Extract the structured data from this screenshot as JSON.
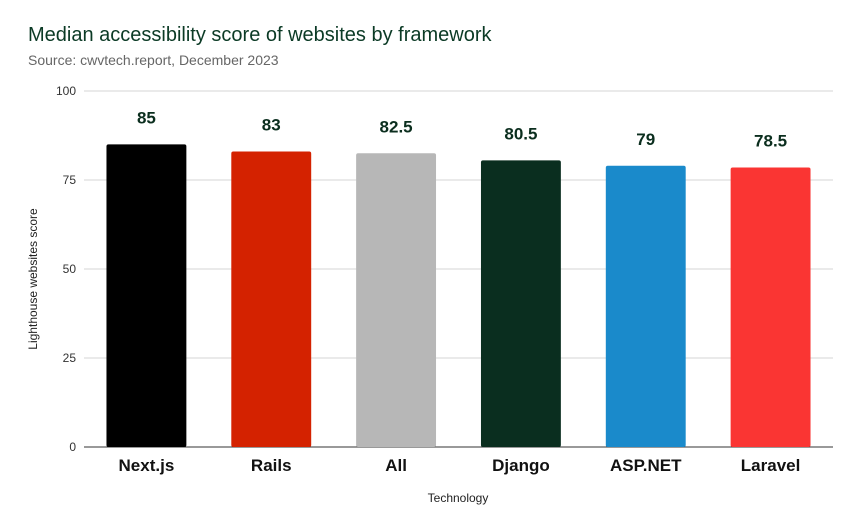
{
  "chart_data": {
    "type": "bar",
    "title": "Median accessibility score of websites by framework",
    "subtitle": "Source: cwvtech.report, December 2023",
    "xlabel": "Technology",
    "ylabel": "Lighthouse websites score",
    "categories": [
      "Next.js",
      "Rails",
      "All",
      "Django",
      "ASP.NET",
      "Laravel"
    ],
    "values": [
      85,
      83,
      82.5,
      80.5,
      79,
      78.5
    ],
    "data_labels": [
      "85",
      "83",
      "82.5",
      "80.5",
      "79",
      "78.5"
    ],
    "colors": [
      "#000000",
      "#d42200",
      "#b7b7b7",
      "#0a2e1f",
      "#1a8acb",
      "#fa3533"
    ],
    "ylim": [
      0,
      100
    ],
    "yticks": [
      0,
      25,
      50,
      75,
      100
    ],
    "grid": true,
    "legend": "none"
  }
}
